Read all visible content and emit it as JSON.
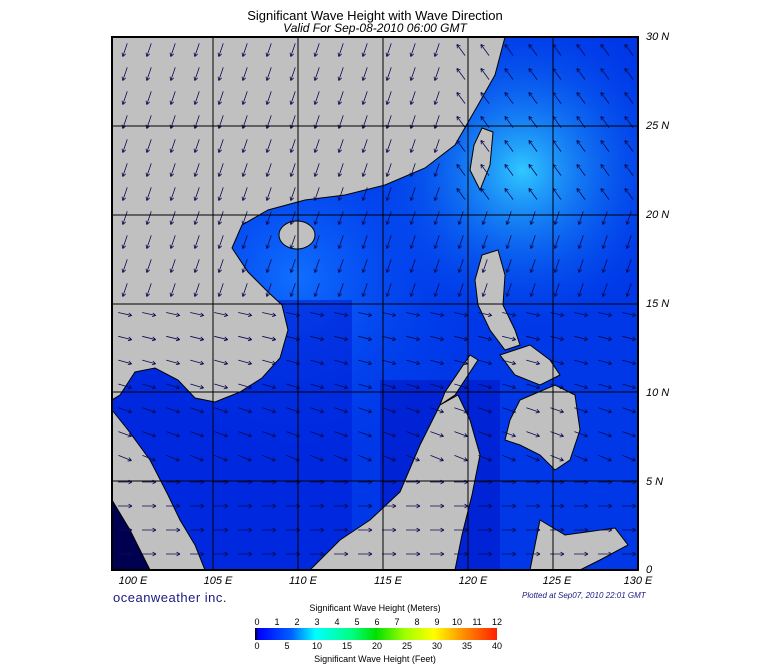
{
  "title": "Significant Wave Height with Wave Direction",
  "subtitle": "Valid For Sep-08-2010 06:00 GMT",
  "lat_labels": [
    "30 N",
    "25 N",
    "20 N",
    "15 N",
    "10 N",
    "5 N",
    "0"
  ],
  "lon_labels": [
    "100 E",
    "105 E",
    "110 E",
    "115 E",
    "120 E",
    "125 E",
    "130 E"
  ],
  "brand": "oceanweather inc.",
  "plotted": "Plotted at Sep07, 2010 22:01 GMT",
  "colorbar": {
    "title_meters": "Significant Wave Height (Meters)",
    "title_feet": "Significant Wave Height (Feet)",
    "meters_ticks": [
      "0",
      "1",
      "2",
      "3",
      "4",
      "5",
      "6",
      "7",
      "8",
      "9",
      "10",
      "11",
      "12"
    ],
    "feet_ticks": [
      "0",
      "5",
      "10",
      "15",
      "20",
      "25",
      "30",
      "35",
      "40"
    ]
  },
  "colors": {
    "land": "#c0c0c0",
    "sea_low": "#0000e0",
    "sea_high": "#00c8ff",
    "arrow": "#0a0a50"
  }
}
